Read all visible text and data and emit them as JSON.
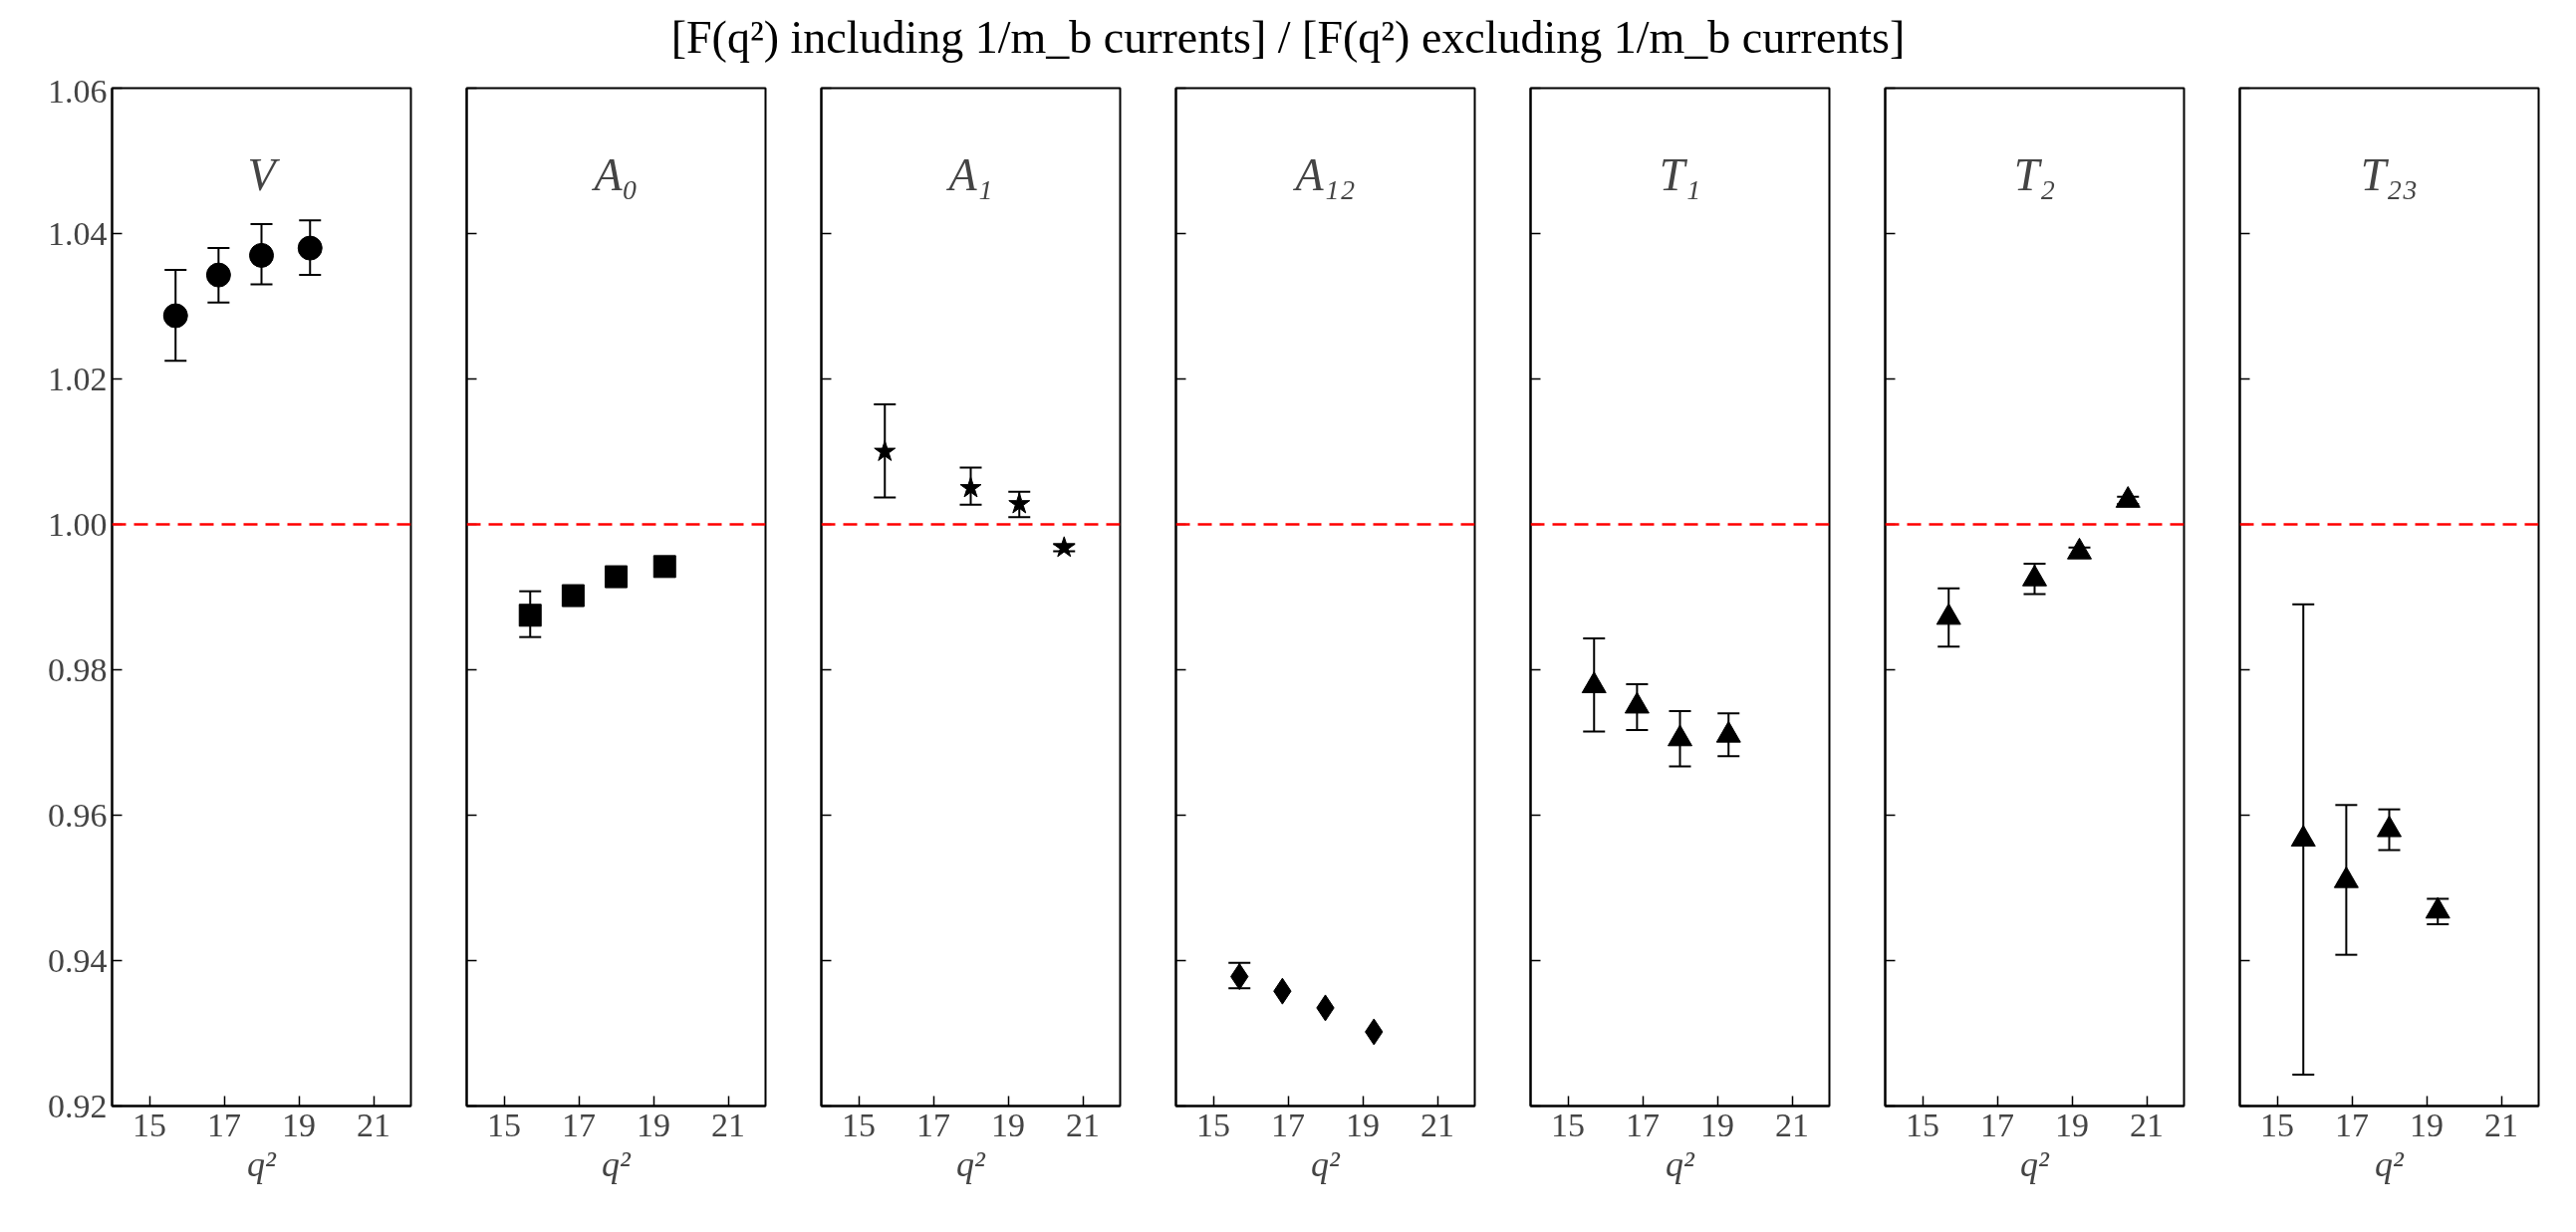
{
  "chart_data": [
    {
      "type": "scatter",
      "annotations": [
        "V"
      ],
      "xlabel": "q²",
      "marker": "circle",
      "grid": false,
      "xlim": [
        14,
        22
      ],
      "xticks": [
        15,
        17,
        19,
        21
      ],
      "ylim": [
        0.92,
        1.06
      ],
      "yticks": [
        {
          "value": 0.92,
          "label": "0.92"
        },
        {
          "value": 0.94,
          "label": "0.94"
        },
        {
          "value": 0.96,
          "label": "0.96"
        },
        {
          "value": 0.98,
          "label": "0.98"
        },
        {
          "value": 1.0,
          "label": "1.00"
        },
        {
          "value": 1.02,
          "label": "1.02"
        },
        {
          "value": 1.04,
          "label": "1.04"
        },
        {
          "value": 1.06,
          "label": "1.06"
        }
      ],
      "ref_lines": [
        {
          "axis": "y",
          "value": 1.0,
          "color": "#ff0000",
          "line_style": "dashed"
        }
      ],
      "series": [
        {
          "color": "#000000",
          "x": [
            15.7,
            16.85,
            18.0,
            19.3
          ],
          "values": [
            1.0287,
            1.0343,
            1.037,
            1.038
          ],
          "errors": [
            [
              1.0225,
              1.035
            ],
            [
              1.0305,
              1.038
            ],
            [
              1.033,
              1.0413
            ],
            [
              1.0343,
              1.0418
            ]
          ]
        }
      ]
    },
    {
      "type": "scatter",
      "annotations": [
        "A₀"
      ],
      "xlabel": "q²",
      "marker": "square",
      "grid": false,
      "tick_labels": "x",
      "xlim": [
        14,
        22
      ],
      "xticks": [
        15,
        17,
        19,
        21
      ],
      "ylim": [
        0.92,
        1.06
      ],
      "yticks": [
        0.92,
        0.94,
        0.96,
        0.98,
        1.0,
        1.02,
        1.04,
        1.06
      ],
      "ref_lines": [
        {
          "axis": "y",
          "value": 1.0,
          "color": "#ff0000",
          "line_style": "dashed"
        }
      ],
      "series": [
        {
          "color": "#000000",
          "x": [
            15.7,
            16.85,
            18.0,
            19.3
          ],
          "values": [
            0.9875,
            0.9902,
            0.9928,
            0.9942
          ],
          "errors": [
            [
              0.9845,
              0.9908
            ],
            null,
            null,
            null
          ]
        }
      ]
    },
    {
      "type": "scatter",
      "annotations": [
        "A₁"
      ],
      "xlabel": "q²",
      "marker": "star",
      "grid": false,
      "tick_labels": "x",
      "xlim": [
        14,
        22
      ],
      "xticks": [
        15,
        17,
        19,
        21
      ],
      "ylim": [
        0.92,
        1.06
      ],
      "yticks": [
        0.92,
        0.94,
        0.96,
        0.98,
        1.0,
        1.02,
        1.04,
        1.06
      ],
      "ref_lines": [
        {
          "axis": "y",
          "value": 1.0,
          "color": "#ff0000",
          "line_style": "dashed"
        }
      ],
      "series": [
        {
          "color": "#000000",
          "x": [
            15.7,
            18.0,
            19.3,
            20.5
          ],
          "values": [
            1.01,
            1.005,
            1.0028,
            0.9968
          ],
          "errors": [
            [
              1.0037,
              1.0165
            ],
            [
              1.0027,
              1.0078
            ],
            [
              1.001,
              1.0045
            ],
            [
              0.9963,
              0.9973
            ]
          ]
        }
      ]
    },
    {
      "type": "scatter",
      "title": "[F(q²) including 1/m_b currents] / [F(q²) excluding 1/m_b currents]",
      "annotations": [
        "A₁₂"
      ],
      "xlabel": "q²",
      "marker": "diamond",
      "grid": false,
      "tick_labels": "x",
      "xlim": [
        14,
        22
      ],
      "xticks": [
        15,
        17,
        19,
        21
      ],
      "ylim": [
        0.92,
        1.06
      ],
      "yticks": [
        0.92,
        0.94,
        0.96,
        0.98,
        1.0,
        1.02,
        1.04,
        1.06
      ],
      "ref_lines": [
        {
          "axis": "y",
          "value": 1.0,
          "color": "#ff0000",
          "line_style": "dashed"
        }
      ],
      "series": [
        {
          "color": "#000000",
          "x": [
            15.7,
            16.85,
            18.0,
            19.3
          ],
          "values": [
            0.9378,
            0.9358,
            0.9335,
            0.9302
          ],
          "errors": [
            [
              0.9362,
              0.9397
            ],
            null,
            null,
            null
          ]
        }
      ]
    },
    {
      "type": "scatter",
      "annotations": [
        "T₁"
      ],
      "xlabel": "q²",
      "marker": "triangle",
      "grid": false,
      "tick_labels": "x",
      "xlim": [
        14,
        22
      ],
      "xticks": [
        15,
        17,
        19,
        21
      ],
      "ylim": [
        0.92,
        1.06
      ],
      "yticks": [
        0.92,
        0.94,
        0.96,
        0.98,
        1.0,
        1.02,
        1.04,
        1.06
      ],
      "ref_lines": [
        {
          "axis": "y",
          "value": 1.0,
          "color": "#ff0000",
          "line_style": "dashed"
        }
      ],
      "series": [
        {
          "color": "#000000",
          "x": [
            15.7,
            16.85,
            18.0,
            19.3
          ],
          "values": [
            0.9778,
            0.975,
            0.9705,
            0.971
          ],
          "errors": [
            [
              0.9715,
              0.9843
            ],
            [
              0.9717,
              0.978
            ],
            [
              0.9667,
              0.9743
            ],
            [
              0.9681,
              0.974
            ]
          ]
        }
      ]
    },
    {
      "type": "scatter",
      "annotations": [
        "T₂"
      ],
      "xlabel": "q²",
      "marker": "triangle",
      "grid": false,
      "tick_labels": "x",
      "xlim": [
        14,
        22
      ],
      "xticks": [
        15,
        17,
        19,
        21
      ],
      "ylim": [
        0.92,
        1.06
      ],
      "yticks": [
        0.92,
        0.94,
        0.96,
        0.98,
        1.0,
        1.02,
        1.04,
        1.06
      ],
      "ref_lines": [
        {
          "axis": "y",
          "value": 1.0,
          "color": "#ff0000",
          "line_style": "dashed"
        }
      ],
      "series": [
        {
          "color": "#000000",
          "x": [
            15.7,
            18.0,
            19.2,
            20.5
          ],
          "values": [
            0.9872,
            0.9925,
            0.9962,
            1.0033
          ],
          "errors": [
            [
              0.9832,
              0.9912
            ],
            [
              0.9904,
              0.9946
            ],
            [
              0.9954,
              0.9968
            ],
            [
              1.0028,
              1.0038
            ]
          ]
        }
      ]
    },
    {
      "type": "scatter",
      "annotations": [
        "T₂₃"
      ],
      "xlabel": "q²",
      "marker": "triangle",
      "grid": false,
      "tick_labels": "x",
      "xlim": [
        14,
        22
      ],
      "xticks": [
        15,
        17,
        19,
        21
      ],
      "ylim": [
        0.92,
        1.06
      ],
      "yticks": [
        0.92,
        0.94,
        0.96,
        0.98,
        1.0,
        1.02,
        1.04,
        1.06
      ],
      "ref_lines": [
        {
          "axis": "y",
          "value": 1.0,
          "color": "#ff0000",
          "line_style": "dashed"
        }
      ],
      "series": [
        {
          "color": "#000000",
          "x": [
            15.7,
            16.85,
            18.0,
            19.3
          ],
          "values": [
            0.9567,
            0.951,
            0.958,
            0.9468
          ],
          "errors": [
            [
              0.9243,
              0.989
            ],
            [
              0.9408,
              0.9614
            ],
            [
              0.9552,
              0.9608
            ],
            [
              0.945,
              0.9485
            ]
          ]
        }
      ]
    }
  ]
}
